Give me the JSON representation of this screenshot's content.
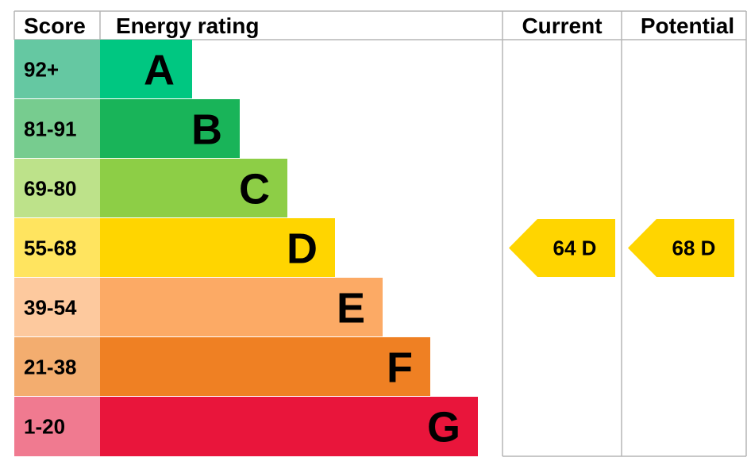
{
  "headers": {
    "score": "Score",
    "energy_rating": "Energy rating",
    "current": "Current",
    "potential": "Potential"
  },
  "chart_data": {
    "type": "bar",
    "bands": [
      {
        "band": "A",
        "range": "92+",
        "bar_color": "#00c781",
        "score_bg": "#65c8a2"
      },
      {
        "band": "B",
        "range": "81-91",
        "bar_color": "#19b459",
        "score_bg": "#77cc8f"
      },
      {
        "band": "C",
        "range": "69-80",
        "bar_color": "#8dce46",
        "score_bg": "#bde28a"
      },
      {
        "band": "D",
        "range": "55-68",
        "bar_color": "#ffd500",
        "score_bg": "#ffe45f"
      },
      {
        "band": "E",
        "range": "39-54",
        "bar_color": "#fcaa65",
        "score_bg": "#fdc99e"
      },
      {
        "band": "F",
        "range": "21-38",
        "bar_color": "#ef8023",
        "score_bg": "#f3ad6f"
      },
      {
        "band": "G",
        "range": "1-20",
        "bar_color": "#e9153b",
        "score_bg": "#f07a90"
      }
    ],
    "current": {
      "score": 64,
      "band": "D",
      "label": "64  D",
      "color": "#ffd500"
    },
    "potential": {
      "score": 68,
      "band": "D",
      "label": "68  D",
      "color": "#ffd500"
    }
  }
}
